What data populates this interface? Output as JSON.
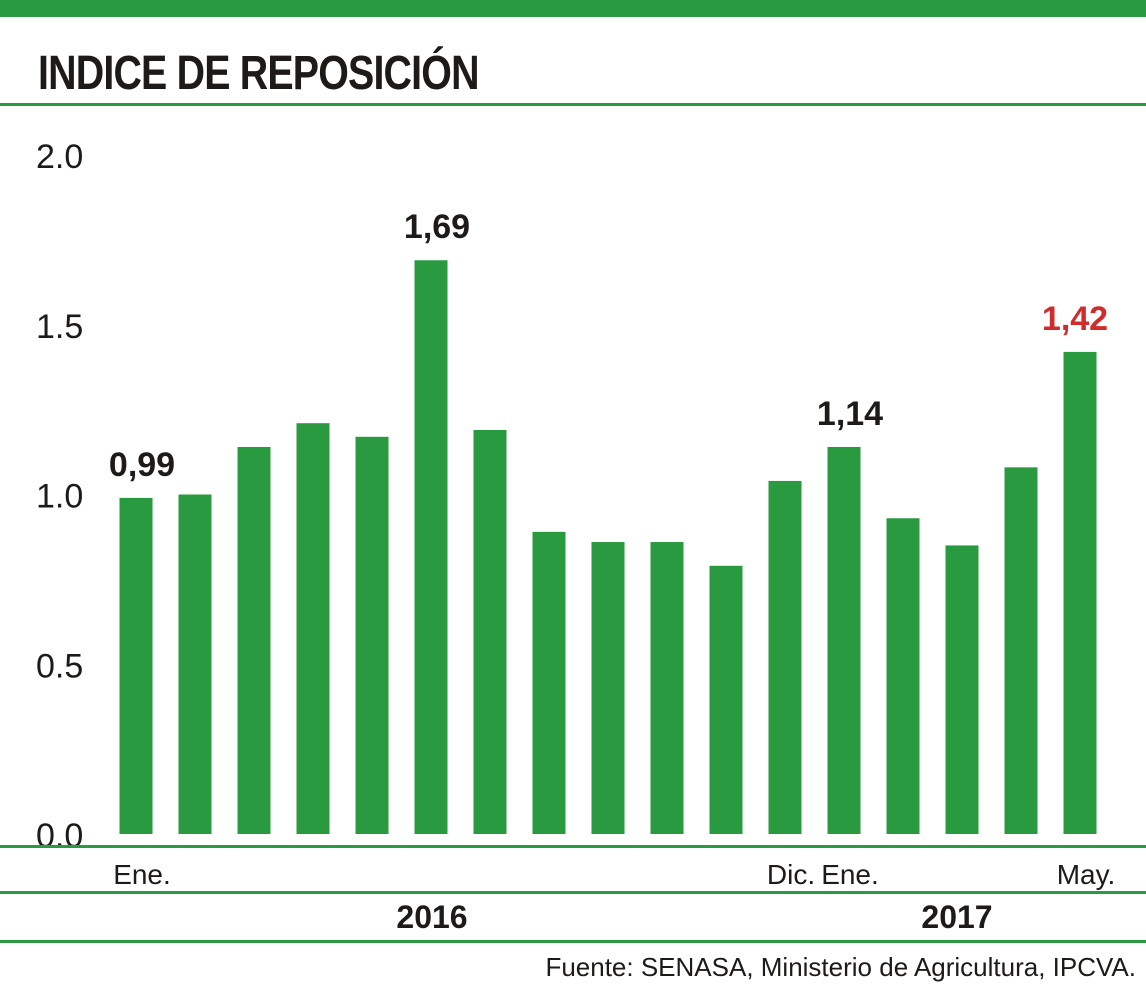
{
  "title": "INDICE DE REPOSICIÓN",
  "source": "Fuente: SENASA, Ministerio de Agricultura, IPCVA.",
  "colors": {
    "bar": "#2a9a41",
    "rule": "#2a9a41",
    "text": "#1d1a17",
    "highlight": "#d12c2c"
  },
  "chart_data": {
    "type": "bar",
    "title": "INDICE DE REPOSICIÓN",
    "categories": [
      "Ene.",
      "",
      "",
      "",
      "",
      "",
      "",
      "",
      "",
      "",
      "",
      "Dic.",
      "Ene.",
      "",
      "",
      "",
      "May."
    ],
    "values": [
      0.99,
      1.0,
      1.14,
      1.21,
      1.17,
      1.69,
      1.19,
      0.89,
      0.86,
      0.86,
      0.79,
      1.04,
      1.14,
      0.93,
      0.85,
      1.08,
      1.42
    ],
    "data_labels": [
      {
        "index": 0,
        "text": "0,99",
        "highlight": false
      },
      {
        "index": 5,
        "text": "1,69",
        "highlight": false
      },
      {
        "index": 12,
        "text": "1,14",
        "highlight": false
      },
      {
        "index": 16,
        "text": "1,42",
        "highlight": true
      }
    ],
    "year_groups": [
      {
        "label": "2016",
        "from": 0,
        "to": 11
      },
      {
        "label": "2017",
        "from": 12,
        "to": 16
      }
    ],
    "yticks": [
      "0.0",
      "0.5",
      "1.0",
      "1.5",
      "2.0"
    ],
    "ylim": [
      0,
      2.0
    ],
    "xlabel": "",
    "ylabel": "",
    "grid": false,
    "legend": "none"
  }
}
